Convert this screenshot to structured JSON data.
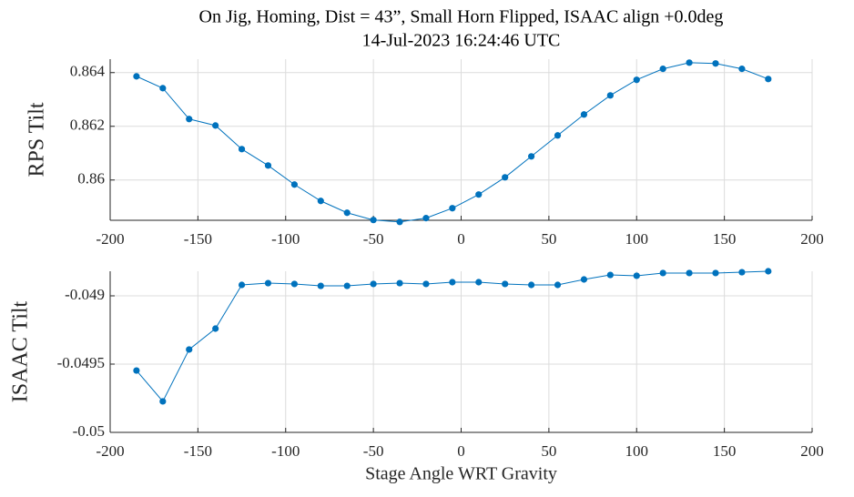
{
  "chart_data": [
    {
      "type": "line",
      "title": "On Jig, Homing, Dist = 43”, Small Horn Flipped, ISAAC align +0.0deg",
      "subtitle": "14-Jul-2023 16:24:46 UTC",
      "ylabel": "RPS Tilt",
      "x": [
        -185,
        -170,
        -155,
        -140,
        -125,
        -110,
        -95,
        -80,
        -65,
        -50,
        -35,
        -20,
        -5,
        10,
        25,
        40,
        55,
        70,
        85,
        100,
        115,
        130,
        145,
        160,
        175
      ],
      "series": [
        {
          "color": "#0072bd",
          "values": [
            0.86386,
            0.86342,
            0.86227,
            0.86203,
            0.86115,
            0.86054,
            0.85983,
            0.85922,
            0.85878,
            0.85851,
            0.85844,
            0.85858,
            0.85895,
            0.85946,
            0.8601,
            0.86088,
            0.86166,
            0.86244,
            0.86315,
            0.86373,
            0.86414,
            0.86437,
            0.86434,
            0.86414,
            0.86376
          ]
        }
      ],
      "xlim": [
        -200,
        200
      ],
      "xticks": [
        -200,
        -150,
        -100,
        -50,
        0,
        50,
        100,
        150,
        200
      ],
      "ylim": [
        0.8585,
        0.8645
      ],
      "yticks": [
        0.86,
        0.862,
        0.864
      ],
      "grid": true
    },
    {
      "type": "line",
      "ylabel": "ISAAC Tilt",
      "xlabel": "Stage Angle WRT Gravity",
      "x": [
        -185,
        -170,
        -155,
        -140,
        -125,
        -110,
        -95,
        -80,
        -65,
        -50,
        -35,
        -20,
        -5,
        10,
        25,
        40,
        55,
        70,
        85,
        100,
        115,
        130,
        145,
        160,
        175
      ],
      "series": [
        {
          "color": "#0072bd",
          "values": [
            -0.049547,
            -0.049773,
            -0.049393,
            -0.04924,
            -0.04892,
            -0.048907,
            -0.048913,
            -0.048927,
            -0.048927,
            -0.048913,
            -0.048907,
            -0.048913,
            -0.0489,
            -0.0489,
            -0.048913,
            -0.04892,
            -0.04892,
            -0.04888,
            -0.048847,
            -0.048853,
            -0.048833,
            -0.048833,
            -0.048833,
            -0.048827,
            -0.04882
          ]
        }
      ],
      "xlim": [
        -200,
        200
      ],
      "xticks": [
        -200,
        -150,
        -100,
        -50,
        0,
        50,
        100,
        150,
        200
      ],
      "ylim": [
        -0.05,
        -0.04882
      ],
      "yticks": [
        -0.05,
        -0.0495,
        -0.049
      ],
      "grid": true
    }
  ]
}
